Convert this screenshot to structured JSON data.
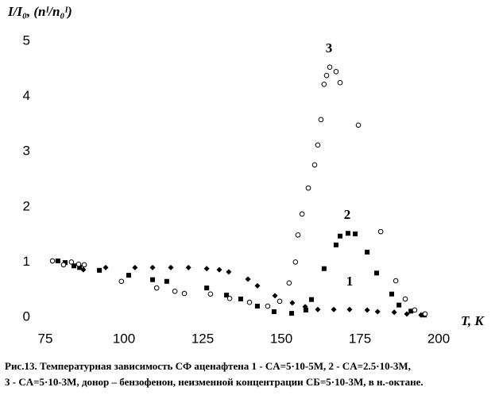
{
  "chart_data": {
    "type": "scatter",
    "y_label": "I/I₀, (nᴵ/n₀ᴵ)",
    "x_label": "T, K",
    "xlim": [
      75,
      200
    ],
    "xticks": [
      75,
      100,
      125,
      150,
      175,
      200
    ],
    "ylim": [
      0,
      5
    ],
    "yticks": [
      0,
      1,
      2,
      3,
      4,
      5
    ],
    "grid": false,
    "series": [
      {
        "name": "1",
        "color": "#000000",
        "marker": "diamond",
        "x": [
          87.1,
          94.2,
          103.5,
          109.1,
          114.9,
          120.5,
          126.3,
          130.3,
          133.3,
          139.4,
          142.4,
          148,
          153.5,
          157.6,
          161.6,
          166.7,
          171.7,
          177.3,
          180.6,
          185.9,
          189.9,
          194.4
        ],
        "values": [
          0.86,
          0.9,
          0.9,
          0.9,
          0.9,
          0.9,
          0.88,
          0.86,
          0.82,
          0.69,
          0.57,
          0.39,
          0.26,
          0.19,
          0.14,
          0.14,
          0.14,
          0.13,
          0.1,
          0.09,
          0.06,
          0.04
        ]
      },
      {
        "name": "2",
        "color": "#000000",
        "marker": "square",
        "x": [
          79,
          81.3,
          84.1,
          85.9,
          92.2,
          101.5,
          109.1,
          113.6,
          126.3,
          132.6,
          137.1,
          142.4,
          147.7,
          153.3,
          157.8,
          159.6,
          163.6,
          167.4,
          168.7,
          171.2,
          173.5,
          177.3,
          180.3,
          185.1,
          187.4,
          191.2,
          195.5
        ],
        "values": [
          1.02,
          0.99,
          0.93,
          0.9,
          0.85,
          0.76,
          0.68,
          0.65,
          0.53,
          0.4,
          0.33,
          0.2,
          0.1,
          0.07,
          0.13,
          0.32,
          0.88,
          1.31,
          1.47,
          1.52,
          1.51,
          1.18,
          0.8,
          0.42,
          0.22,
          0.11,
          0.04
        ]
      },
      {
        "name": "3",
        "color": "#000000",
        "marker": "circle-open",
        "x": [
          77.3,
          80.8,
          83.3,
          85.6,
          87.4,
          99.2,
          110.4,
          116.2,
          119.2,
          127.5,
          133.6,
          139.9,
          145.7,
          149.5,
          152.5,
          154.5,
          155.3,
          156.6,
          158.6,
          160.6,
          161.6,
          162.6,
          163.6,
          164.4,
          165.4,
          167.4,
          168.7,
          174.5,
          181.6,
          186.4,
          189.4,
          192.4,
          195.7
        ],
        "values": [
          1.02,
          0.95,
          1.0,
          0.96,
          0.95,
          0.65,
          0.53,
          0.47,
          0.43,
          0.42,
          0.34,
          0.27,
          0.2,
          0.29,
          0.62,
          1.0,
          1.49,
          1.87,
          2.34,
          2.76,
          3.12,
          3.58,
          4.22,
          4.38,
          4.53,
          4.45,
          4.25,
          3.48,
          1.55,
          0.66,
          0.33,
          0.13,
          0.06
        ]
      }
    ],
    "caption": [
      "Рис.13. Температурная зависимость СФ аценафтена 1 - CА=5·10-5M, 2 - CА=2.5·10-3M,",
      "3 - CА=5·10-3M, донор – бензофенон, неизменной концентрации CБ=5·10-3M,  в н.-октане."
    ]
  }
}
